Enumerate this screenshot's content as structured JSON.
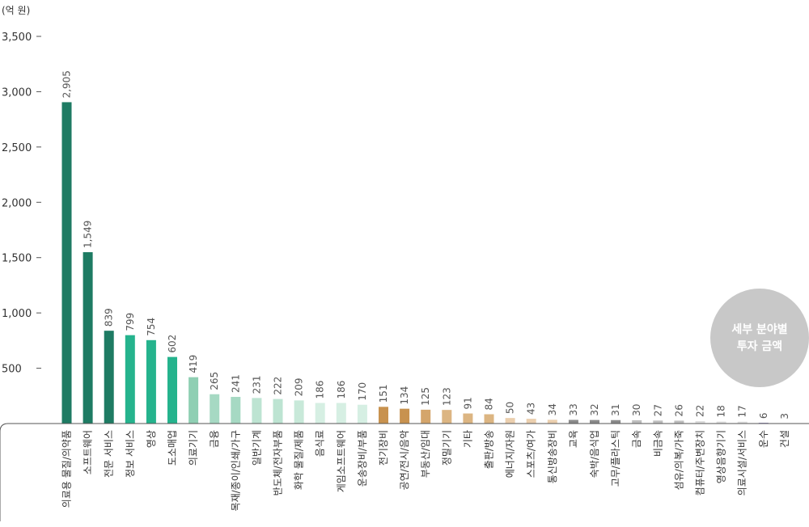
{
  "chart_data": {
    "type": "bar",
    "unit_label": "(억 원)",
    "ylim": [
      0,
      3500
    ],
    "y_ticks": [
      {
        "value": 500,
        "label": "500"
      },
      {
        "value": 1000,
        "label": "1,000"
      },
      {
        "value": 1500,
        "label": "1,500"
      },
      {
        "value": 2000,
        "label": "2,000"
      },
      {
        "value": 2500,
        "label": "2,500"
      },
      {
        "value": 3000,
        "label": "3,000"
      },
      {
        "value": 3500,
        "label": "3,500"
      }
    ],
    "categories": [
      "의료용 물질/의약품",
      "소프트웨어",
      "전문 서비스",
      "정보 서비스",
      "영상",
      "도소매업",
      "의료기기",
      "금융",
      "목재/종이/인쇄/가구",
      "일반기계",
      "반도체/전자부품",
      "화학 물질/제품",
      "음식료",
      "게임소프트웨어",
      "운송장비/부품",
      "전기장비",
      "공연/전시/음악",
      "부동산/임대",
      "정밀기기",
      "기타",
      "출판/방송",
      "에너지/자원",
      "스포츠/여가",
      "통신방송장비",
      "교육",
      "숙박/음식업",
      "고무/플라스틱",
      "금속",
      "비금속",
      "섬유/의복/가죽",
      "컴퓨터/주변장치",
      "영상음향기기",
      "의료시설/서비스",
      "운수",
      "건설"
    ],
    "values": [
      2905,
      1549,
      839,
      799,
      754,
      602,
      419,
      265,
      241,
      231,
      222,
      209,
      186,
      186,
      170,
      151,
      134,
      125,
      123,
      91,
      84,
      50,
      43,
      34,
      33,
      32,
      31,
      30,
      27,
      26,
      22,
      18,
      17,
      6,
      3
    ],
    "value_labels": [
      "2,905",
      "1,549",
      "839",
      "799",
      "754",
      "602",
      "419",
      "265",
      "241",
      "231",
      "222",
      "209",
      "186",
      "186",
      "170",
      "151",
      "134",
      "125",
      "123",
      "91",
      "84",
      "50",
      "43",
      "34",
      "33",
      "32",
      "31",
      "30",
      "27",
      "26",
      "22",
      "18",
      "17",
      "6",
      "3"
    ],
    "colors": [
      "#1e7b63",
      "#1e7b63",
      "#1e7b63",
      "#25b38d",
      "#25b38d",
      "#25b38d",
      "#8fcfb3",
      "#a6d9c3",
      "#a6d9c3",
      "#bde4d2",
      "#bde4d2",
      "#c8e9d9",
      "#d6efe3",
      "#d6efe3",
      "#d6efe3",
      "#c8924f",
      "#c8924f",
      "#d4a56b",
      "#dcb582",
      "#dcb582",
      "#dcb582",
      "#ebcfae",
      "#ebcfae",
      "#ebcfae",
      "#8a8a8a",
      "#8a8a8a",
      "#8a8a8a",
      "#bdbdbd",
      "#bdbdbd",
      "#bdbdbd",
      "#dddddd",
      "#dddddd",
      "#dddddd",
      "#6b5aa8",
      "#a8a2c8"
    ]
  },
  "badge": {
    "line1": "세부 분야별",
    "line2": "투자 금액",
    "color": "#c8c8c8"
  }
}
